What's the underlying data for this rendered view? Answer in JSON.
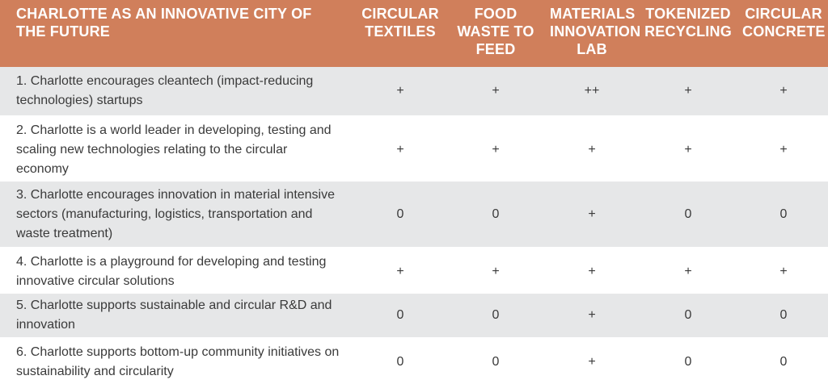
{
  "header": {
    "title": "CHARLOTTE AS AN INNOVATIVE CITY OF THE FUTURE",
    "columns": [
      "CIRCULAR TEXTILES",
      "FOOD WASTE TO FEED",
      "MATERIALS INNOVATION LAB",
      "TOKENIZED RECYCLING",
      "CIRCULAR CONCRETE"
    ]
  },
  "rows": [
    {
      "label": "1. Charlotte encourages cleantech (impact-reducing technologies) startups",
      "values": [
        "+",
        "+",
        "++",
        "+",
        "+"
      ]
    },
    {
      "label": "2. Charlotte is a world leader in developing, testing and scaling new technologies relating to the circular economy",
      "values": [
        "+",
        "+",
        "+",
        "+",
        "+"
      ]
    },
    {
      "label": "3. Charlotte encourages innovation in material intensive sectors (manufacturing, logistics, transportation and waste treatment)",
      "values": [
        "0",
        "0",
        "+",
        "0",
        "0"
      ]
    },
    {
      "label": "4. Charlotte is a playground for developing and testing innovative circular solutions",
      "values": [
        "+",
        "+",
        "+",
        "+",
        "+"
      ]
    },
    {
      "label": "5. Charlotte supports sustainable and circular R&D and innovation",
      "values": [
        "0",
        "0",
        "+",
        "0",
        "0"
      ]
    },
    {
      "label": "6. Charlotte supports bottom-up community initiatives on sustainability and circularity",
      "values": [
        "0",
        "0",
        "+",
        "0",
        "0"
      ]
    }
  ],
  "colors": {
    "header_bg": "#d07f5b",
    "header_text": "#ffffff",
    "row_gray": "#e6e7e8",
    "row_white": "#ffffff",
    "body_text": "#3a3a3a"
  }
}
